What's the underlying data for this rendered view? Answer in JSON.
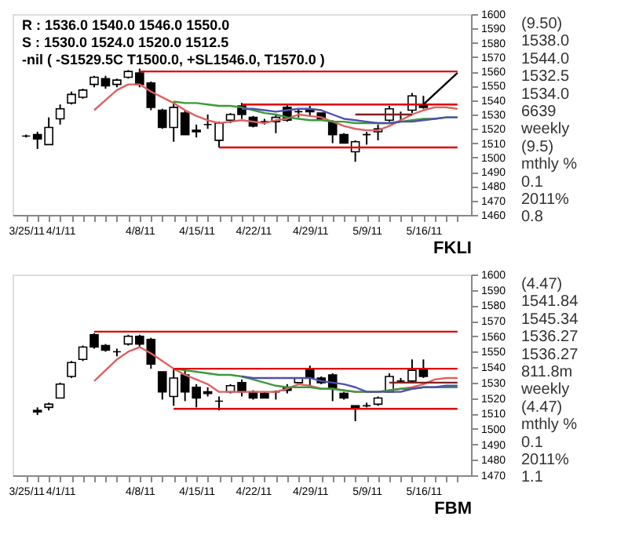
{
  "chart_data": [
    {
      "type": "candlestick",
      "title": "R :  1536.0  1540.0  1546.0  1550.0\nS :  1530.0  1524.0  1520.0  1512.5\n-nil  ( -S1529.5C T1500.0, +SL1546.0, T1570.0 )",
      "xlabel": "FKLI",
      "categories": [
        "3/25/11",
        null,
        null,
        "4/1/11",
        null,
        null,
        null,
        null,
        null,
        null,
        "4/8/11",
        null,
        null,
        null,
        null,
        "4/15/11",
        null,
        null,
        null,
        null,
        "4/22/11",
        null,
        null,
        null,
        null,
        "4/29/11",
        null,
        null,
        null,
        null,
        "5/9/11",
        null,
        null,
        null,
        null,
        "5/16/11",
        null,
        null,
        null
      ],
      "ohlc": [
        [
          1515,
          1516,
          1514,
          1515
        ],
        [
          1516,
          1518,
          1506,
          1513
        ],
        [
          1509,
          1528,
          1509,
          1521
        ],
        [
          1527,
          1537,
          1523,
          1534
        ],
        [
          1538,
          1546,
          1537,
          1544
        ],
        [
          1542,
          1548,
          1541,
          1547
        ],
        [
          1551,
          1557,
          1549,
          1556
        ],
        [
          1555,
          1557,
          1548,
          1550
        ],
        [
          1551,
          1555,
          1549,
          1554
        ],
        [
          1556,
          1561,
          1555,
          1560
        ],
        [
          1559,
          1562,
          1549,
          1551
        ],
        [
          1552,
          1553,
          1533,
          1535
        ],
        [
          1533,
          1534,
          1520,
          1521
        ],
        [
          1521,
          1539,
          1511,
          1535
        ],
        [
          1531,
          1533,
          1516,
          1516
        ],
        [
          1519,
          1523,
          1514,
          1518
        ],
        [
          1523,
          1530,
          1520,
          1523
        ],
        [
          1512,
          1525,
          1507,
          1524
        ],
        [
          1526,
          1531,
          1524,
          1530
        ],
        [
          1536,
          1538,
          1527,
          1530
        ],
        [
          1528,
          1529,
          1521,
          1522
        ],
        [
          1525,
          1527,
          1523,
          1525
        ],
        [
          1525,
          1530,
          1517,
          1528
        ],
        [
          1535,
          1537,
          1525,
          1526
        ],
        [
          1532,
          1534,
          1528,
          1532
        ],
        [
          1533,
          1536,
          1529,
          1532
        ],
        [
          1531,
          1531,
          1526,
          1527
        ],
        [
          1525,
          1526,
          1510,
          1516
        ],
        [
          1516,
          1517,
          1510,
          1510
        ],
        [
          1504,
          1512,
          1497,
          1511
        ],
        [
          1516,
          1518,
          1509,
          1516
        ],
        [
          1518,
          1523,
          1512,
          1520
        ],
        [
          1526,
          1536,
          1525,
          1534
        ],
        [
          1530,
          1532,
          1526,
          1530
        ],
        [
          1533,
          1545,
          1531,
          1543
        ],
        [
          1537,
          1543,
          1534,
          1535
        ],
        null,
        null,
        null
      ],
      "series": [
        {
          "type": "line",
          "color": "#e06060",
          "values": [
            null,
            null,
            null,
            null,
            null,
            null,
            1533,
            1540,
            1547,
            1551,
            1551,
            1546,
            1542,
            1538,
            1533,
            1529,
            1526,
            1524,
            1525,
            1526,
            1525,
            1524,
            1526,
            1527,
            1530,
            1529,
            1528,
            1525,
            1522,
            1520,
            1519,
            1519,
            1522,
            1526,
            1530,
            1533,
            1535,
            1535,
            1534
          ]
        },
        {
          "type": "line",
          "color": "#3a9a3a",
          "values": [
            null,
            null,
            null,
            null,
            null,
            null,
            null,
            null,
            null,
            null,
            null,
            null,
            null,
            1539,
            1538,
            1538,
            1537,
            1536,
            1536,
            1535,
            1533,
            1531,
            1530,
            1528,
            1527,
            1526,
            1526,
            1525,
            1525,
            1524,
            1524,
            1524,
            1524,
            1525,
            1526,
            1527,
            1527,
            1528,
            1528
          ]
        },
        {
          "type": "line",
          "color": "#5050b0",
          "values": [
            null,
            null,
            null,
            null,
            null,
            null,
            null,
            null,
            null,
            null,
            null,
            null,
            null,
            null,
            null,
            null,
            null,
            null,
            null,
            1534,
            1534,
            1533,
            1532,
            1533,
            1534,
            1534,
            1533,
            1530,
            1527,
            1526,
            1525,
            1524,
            1524,
            1525,
            1525,
            1526,
            1527,
            1528,
            1528
          ]
        },
        {
          "type": "line",
          "color": "#802020",
          "values": [
            null,
            null,
            null,
            null,
            null,
            null,
            null,
            null,
            null,
            null,
            null,
            null,
            null,
            null,
            null,
            null,
            null,
            null,
            null,
            null,
            null,
            null,
            null,
            null,
            null,
            null,
            null,
            null,
            null,
            1530,
            1530,
            1530,
            1530,
            1530,
            1530,
            null,
            null,
            null,
            null
          ]
        },
        {
          "type": "line",
          "color": "#e00000",
          "values": [
            null,
            null,
            null,
            null,
            null,
            null,
            null,
            null,
            null,
            null,
            1560,
            1560,
            1560,
            1560,
            1560,
            1560,
            1560,
            1560,
            1560,
            1560,
            1560,
            1560,
            1560,
            1560,
            1560,
            1560,
            1560,
            1560,
            1560,
            1560,
            1560,
            1560,
            1560,
            1560,
            1560,
            1560,
            1560,
            1560,
            1560
          ]
        },
        {
          "type": "line",
          "color": "#e00000",
          "values": [
            null,
            null,
            null,
            null,
            null,
            null,
            null,
            null,
            null,
            null,
            null,
            null,
            null,
            null,
            null,
            null,
            null,
            null,
            null,
            1537,
            1537,
            1537,
            1537,
            1537,
            1537,
            1537,
            1537,
            1537,
            1537,
            1537,
            1537,
            1537,
            1537,
            1537,
            1537,
            1537,
            1537,
            1537,
            1537
          ]
        },
        {
          "type": "line",
          "color": "#e00000",
          "values": [
            null,
            null,
            null,
            null,
            null,
            null,
            null,
            null,
            null,
            null,
            null,
            null,
            null,
            null,
            null,
            null,
            null,
            1507,
            1507,
            1507,
            1507,
            1507,
            1507,
            1507,
            1507,
            1507,
            1507,
            1507,
            1507,
            1507,
            1507,
            1507,
            1507,
            1507,
            1507,
            1507,
            1507,
            1507,
            1507
          ]
        },
        {
          "type": "line",
          "color": "#000000",
          "values": [
            null,
            null,
            null,
            null,
            null,
            null,
            null,
            null,
            null,
            null,
            null,
            null,
            null,
            null,
            null,
            null,
            null,
            null,
            null,
            null,
            null,
            null,
            null,
            null,
            null,
            null,
            null,
            null,
            null,
            null,
            null,
            null,
            null,
            null,
            null,
            1537,
            null,
            null,
            1559
          ]
        }
      ],
      "ylim": [
        1460,
        1600
      ],
      "yticks": [
        1460,
        1470,
        1480,
        1490,
        1500,
        1510,
        1520,
        1530,
        1540,
        1550,
        1560,
        1570,
        1580,
        1590,
        1600
      ],
      "annotations": [
        "(9.50)",
        "1538.0",
        "1544.0",
        "1532.5",
        "1534.0",
        "6639",
        "weekly",
        "(9.5)",
        "mthly %",
        "0.1",
        "2011%",
        "0.8"
      ]
    },
    {
      "type": "candlestick",
      "xlabel": "FBM",
      "categories": [
        "3/25/11",
        null,
        null,
        "4/1/11",
        null,
        null,
        null,
        null,
        null,
        null,
        "4/8/11",
        null,
        null,
        null,
        null,
        "4/15/11",
        null,
        null,
        null,
        null,
        "4/22/11",
        null,
        null,
        null,
        null,
        "4/29/11",
        null,
        null,
        null,
        null,
        "5/9/11",
        null,
        null,
        null,
        null,
        "5/16/11",
        null,
        null,
        null
      ],
      "ohlc": [
        null,
        [
          1512,
          1514,
          1509,
          1511
        ],
        [
          1514,
          1517,
          1512,
          1516
        ],
        [
          1520,
          1530,
          1520,
          1529
        ],
        [
          1534,
          1544,
          1533,
          1543
        ],
        [
          1545,
          1554,
          1544,
          1553
        ],
        [
          1561,
          1562,
          1552,
          1553
        ],
        [
          1554,
          1555,
          1550,
          1551
        ],
        [
          1550,
          1552,
          1547,
          1550
        ],
        [
          1555,
          1561,
          1554,
          1560
        ],
        [
          1560,
          1561,
          1553,
          1555
        ],
        [
          1558,
          1559,
          1539,
          1542
        ],
        [
          1537,
          1537,
          1519,
          1524
        ],
        [
          1521,
          1539,
          1515,
          1533
        ],
        [
          1535,
          1538,
          1518,
          1524
        ],
        [
          1527,
          1529,
          1514,
          1520
        ],
        [
          1524,
          1527,
          1521,
          1523
        ],
        [
          1518,
          1521,
          1512,
          1518
        ],
        [
          1524,
          1529,
          1523,
          1528
        ],
        [
          1530,
          1532,
          1521,
          1524
        ],
        [
          1524,
          1525,
          1519,
          1520
        ],
        [
          1523,
          1524,
          1520,
          1520
        ],
        [
          1524,
          1525,
          1519,
          1524
        ],
        [
          1527,
          1529,
          1523,
          1525
        ],
        [
          1530,
          1533,
          1530,
          1533
        ],
        [
          1539,
          1541,
          1528,
          1533
        ],
        [
          1533,
          1534,
          1529,
          1530
        ],
        [
          1535,
          1536,
          1518,
          1526
        ],
        [
          1523,
          1524,
          1519,
          1520
        ],
        [
          1515,
          1515,
          1505,
          1513
        ],
        [
          1515,
          1517,
          1514,
          1515
        ],
        [
          1516,
          1521,
          1515,
          1520
        ],
        [
          1524,
          1536,
          1524,
          1534
        ],
        [
          1531,
          1533,
          1530,
          1531
        ],
        [
          1531,
          1545,
          1530,
          1538
        ],
        [
          1539,
          1545,
          1533,
          1534
        ],
        null,
        null,
        null
      ],
      "series": [
        {
          "type": "line",
          "color": "#e06060",
          "values": [
            null,
            null,
            null,
            null,
            null,
            null,
            1531,
            1538,
            1545,
            1550,
            1553,
            1549,
            1544,
            1539,
            1535,
            1532,
            1529,
            1524,
            1524,
            1524,
            1524,
            1524,
            1524,
            1526,
            1529,
            1528,
            1526,
            1526,
            1525,
            1524,
            1524,
            1524,
            1525,
            1526,
            1527,
            1529,
            1532,
            1533,
            1533
          ]
        },
        {
          "type": "line",
          "color": "#3a9a3a",
          "values": [
            null,
            null,
            null,
            null,
            null,
            null,
            null,
            null,
            null,
            null,
            null,
            null,
            null,
            1539,
            1538,
            1537,
            1536,
            1535,
            1535,
            1534,
            1532,
            1530,
            1528,
            1527,
            1527,
            1527,
            1526,
            1526,
            1525,
            1524,
            1524,
            1524,
            1525,
            1526,
            1526,
            1527,
            1527,
            1527,
            1527
          ]
        },
        {
          "type": "line",
          "color": "#5050b0",
          "values": [
            null,
            null,
            null,
            null,
            null,
            null,
            null,
            null,
            null,
            null,
            null,
            null,
            null,
            null,
            null,
            null,
            null,
            null,
            null,
            1534,
            1533,
            1533,
            1533,
            1533,
            1533,
            1533,
            1531,
            1530,
            1529,
            1527,
            1524,
            1524,
            1524,
            1524,
            1526,
            1527,
            1527,
            1528,
            1528
          ]
        },
        {
          "type": "line",
          "color": "#802020",
          "values": [
            null,
            null,
            null,
            null,
            null,
            null,
            null,
            null,
            null,
            null,
            null,
            null,
            null,
            null,
            null,
            null,
            null,
            null,
            null,
            null,
            null,
            null,
            null,
            null,
            null,
            null,
            null,
            null,
            null,
            null,
            null,
            null,
            1530,
            1530,
            1530,
            1530,
            1530,
            1530,
            1530
          ]
        },
        {
          "type": "line",
          "color": "#e00000",
          "values": [
            null,
            null,
            null,
            null,
            null,
            null,
            1563,
            1563,
            1563,
            1563,
            1563,
            1563,
            1563,
            1563,
            1563,
            1563,
            1563,
            1563,
            1563,
            1563,
            1563,
            1563,
            1563,
            1563,
            1563,
            1563,
            1563,
            1563,
            1563,
            1563,
            1563,
            1563,
            1563,
            1563,
            1563,
            1563,
            1563,
            1563,
            1563
          ]
        },
        {
          "type": "line",
          "color": "#e00000",
          "values": [
            null,
            null,
            null,
            null,
            null,
            null,
            null,
            null,
            null,
            null,
            null,
            null,
            null,
            1539,
            1539,
            1539,
            1539,
            1539,
            1539,
            1539,
            1539,
            1539,
            1539,
            1539,
            1539,
            1539,
            1539,
            1539,
            1539,
            1539,
            1539,
            1539,
            1539,
            1539,
            1539,
            1539,
            1539,
            1539,
            1539
          ]
        },
        {
          "type": "line",
          "color": "#e00000",
          "values": [
            null,
            null,
            null,
            null,
            null,
            null,
            null,
            null,
            null,
            null,
            null,
            null,
            null,
            1513,
            1513,
            1513,
            1513,
            1513,
            1513,
            1513,
            1513,
            1513,
            1513,
            1513,
            1513,
            1513,
            1513,
            1513,
            1513,
            1513,
            1513,
            1513,
            1513,
            1513,
            1513,
            1513,
            1513,
            1513,
            1513
          ]
        }
      ],
      "ylim": [
        1470,
        1600
      ],
      "yticks": [
        1470,
        1480,
        1490,
        1500,
        1510,
        1520,
        1530,
        1540,
        1550,
        1560,
        1570,
        1580,
        1590,
        1600
      ],
      "annotations": [
        "(4.47)",
        "1541.84",
        "1545.34",
        "1536.27",
        "1536.27",
        "811.8m",
        "weekly",
        "(4.47)",
        "mthly %",
        "0.1",
        "2011%",
        "1.1"
      ]
    }
  ]
}
